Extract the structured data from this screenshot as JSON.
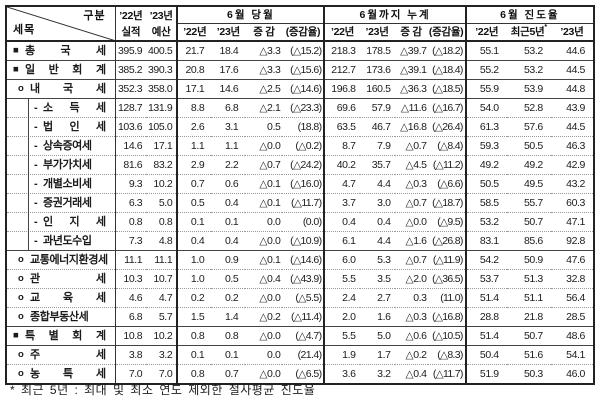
{
  "header": {
    "diagonal": {
      "top_right": "구분",
      "bottom_left": "세목"
    },
    "budget": {
      "years": [
        "’22년",
        "’23년"
      ],
      "labels": [
        "실적",
        "예산"
      ]
    },
    "groups": [
      {
        "label": "6월 당월",
        "cols": [
          "’22년",
          "’23년",
          "증 감",
          "(증감율)"
        ]
      },
      {
        "label": "6월까지 누계",
        "cols": [
          "’22년",
          "’23년",
          "증 감",
          "(증감율)"
        ]
      },
      {
        "label": "6월 진도율",
        "cols": [
          "’22년",
          "최근5년",
          "’23년"
        ],
        "footnote_marker": "*"
      }
    ]
  },
  "rows": [
    {
      "marker": "■",
      "level": 0,
      "box": false,
      "sep": "none",
      "label": "총 국 세",
      "values": [
        "395.9",
        "400.5",
        "21.7",
        "18.4",
        "△3.3",
        "(△15.2)",
        "218.3",
        "178.5",
        "△39.7",
        "(△18.2)",
        "55.1",
        "53.2",
        "44.6"
      ]
    },
    {
      "marker": "■",
      "level": 0,
      "box": false,
      "sep": "solid",
      "label": "일 반 회 계",
      "values": [
        "385.2",
        "390.3",
        "20.8",
        "17.6",
        "△3.3",
        "(△15.6)",
        "212.7",
        "173.6",
        "△39.1",
        "(△18.4)",
        "55.2",
        "53.2",
        "44.5"
      ]
    },
    {
      "marker": "o",
      "level": 1,
      "box": false,
      "sep": "solid",
      "label": "내 국 세",
      "values": [
        "352.3",
        "358.0",
        "17.1",
        "14.6",
        "△2.5",
        "(△14.6)",
        "196.8",
        "160.5",
        "△36.3",
        "(△18.5)",
        "55.9",
        "53.9",
        "44.8"
      ]
    },
    {
      "marker": "-",
      "level": 2,
      "box": true,
      "sep": "solid",
      "label": "소 득 세",
      "values": [
        "128.7",
        "131.9",
        "8.8",
        "6.8",
        "△2.1",
        "(△23.3)",
        "69.6",
        "57.9",
        "△11.6",
        "(△16.7)",
        "54.0",
        "52.8",
        "43.9"
      ]
    },
    {
      "marker": "-",
      "level": 2,
      "box": true,
      "sep": "dotted",
      "label": "법 인 세",
      "values": [
        "103.6",
        "105.0",
        "2.6",
        "3.1",
        "0.5",
        "(18.8)",
        "63.5",
        "46.7",
        "△16.8",
        "(△26.4)",
        "61.3",
        "57.6",
        "44.5"
      ]
    },
    {
      "marker": "-",
      "level": 2,
      "box": true,
      "sep": "dotted",
      "label": "상속증여세",
      "values": [
        "14.6",
        "17.1",
        "1.1",
        "1.1",
        "△0.0",
        "(△0.2)",
        "8.7",
        "7.9",
        "△0.7",
        "(△8.4)",
        "59.3",
        "50.5",
        "46.3"
      ]
    },
    {
      "marker": "-",
      "level": 2,
      "box": true,
      "sep": "dotted",
      "label": "부가가치세",
      "values": [
        "81.6",
        "83.2",
        "2.9",
        "2.2",
        "△0.7",
        "(△24.2)",
        "40.2",
        "35.7",
        "△4.5",
        "(△11.2)",
        "49.2",
        "49.2",
        "42.9"
      ]
    },
    {
      "marker": "-",
      "level": 2,
      "box": true,
      "sep": "dotted",
      "label": "개별소비세",
      "values": [
        "9.3",
        "10.2",
        "0.7",
        "0.6",
        "△0.1",
        "(△16.0)",
        "4.7",
        "4.4",
        "△0.3",
        "(△6.6)",
        "50.5",
        "49.5",
        "43.2"
      ]
    },
    {
      "marker": "-",
      "level": 2,
      "box": true,
      "sep": "dotted",
      "label": "증권거래세",
      "values": [
        "6.3",
        "5.0",
        "0.5",
        "0.4",
        "△0.1",
        "(△11.7)",
        "3.7",
        "3.0",
        "△0.7",
        "(△18.7)",
        "58.5",
        "55.7",
        "60.3"
      ]
    },
    {
      "marker": "-",
      "level": 2,
      "box": true,
      "sep": "dotted",
      "label": "인 지 세",
      "values": [
        "0.8",
        "0.8",
        "0.1",
        "0.1",
        "0.0",
        "(0.0)",
        "0.4",
        "0.4",
        "△0.0",
        "(△9.5)",
        "53.2",
        "50.7",
        "47.1"
      ]
    },
    {
      "marker": "-",
      "level": 2,
      "box": true,
      "sep": "dotted",
      "label": "과년도수입",
      "values": [
        "7.3",
        "4.8",
        "0.4",
        "0.4",
        "△0.0",
        "(△10.9)",
        "6.1",
        "4.4",
        "△1.6",
        "(△26.8)",
        "83.1",
        "85.6",
        "92.8"
      ]
    },
    {
      "marker": "o",
      "level": 1,
      "box": false,
      "sep": "solid",
      "label": "교통에너지환경세",
      "values": [
        "11.1",
        "11.1",
        "1.0",
        "0.9",
        "△0.1",
        "(△14.6)",
        "6.0",
        "5.3",
        "△0.7",
        "(△11.9)",
        "54.2",
        "50.9",
        "47.6"
      ]
    },
    {
      "marker": "o",
      "level": 1,
      "box": false,
      "sep": "dotted",
      "label": "관 세",
      "values": [
        "10.3",
        "10.7",
        "1.0",
        "0.5",
        "△0.4",
        "(△43.9)",
        "5.5",
        "3.5",
        "△2.0",
        "(△36.5)",
        "53.7",
        "51.3",
        "32.8"
      ]
    },
    {
      "marker": "o",
      "level": 1,
      "box": false,
      "sep": "dotted",
      "label": "교 육 세",
      "values": [
        "4.6",
        "4.7",
        "0.2",
        "0.2",
        "△0.0",
        "(△5.5)",
        "2.4",
        "2.7",
        "0.3",
        "(11.0)",
        "51.4",
        "51.1",
        "56.4"
      ]
    },
    {
      "marker": "o",
      "level": 1,
      "box": false,
      "sep": "dotted",
      "label": "종합부동산세",
      "values": [
        "6.8",
        "5.7",
        "1.5",
        "1.4",
        "△0.2",
        "(△11.4)",
        "2.0",
        "1.6",
        "△0.3",
        "(△16.8)",
        "28.8",
        "21.8",
        "28.5"
      ]
    },
    {
      "marker": "■",
      "level": 0,
      "box": false,
      "sep": "solid",
      "label": "특 별 회 계",
      "values": [
        "10.8",
        "10.2",
        "0.8",
        "0.8",
        "△0.0",
        "(△4.7)",
        "5.5",
        "5.0",
        "△0.6",
        "(△10.5)",
        "51.4",
        "50.7",
        "48.6"
      ]
    },
    {
      "marker": "o",
      "level": 1,
      "box": false,
      "sep": "solid",
      "label": "주 세",
      "values": [
        "3.8",
        "3.2",
        "0.1",
        "0.1",
        "0.0",
        "(21.4)",
        "1.9",
        "1.7",
        "△0.2",
        "(△8.3)",
        "50.4",
        "51.6",
        "54.1"
      ]
    },
    {
      "marker": "o",
      "level": 1,
      "box": false,
      "sep": "dotted",
      "label": "농 특 세",
      "values": [
        "7.0",
        "7.0",
        "0.8",
        "0.7",
        "△0.0",
        "(△6.5)",
        "3.6",
        "3.2",
        "△0.4",
        "(△11.7)",
        "51.9",
        "50.3",
        "46.0"
      ]
    }
  ],
  "footnote": "* 최근 5년 : 최대 및 최소 연도 제외한 절사평균 진도율",
  "colors": {
    "border": "#222222",
    "dotted_rule": "#999999",
    "text": "#1b1b1b"
  }
}
